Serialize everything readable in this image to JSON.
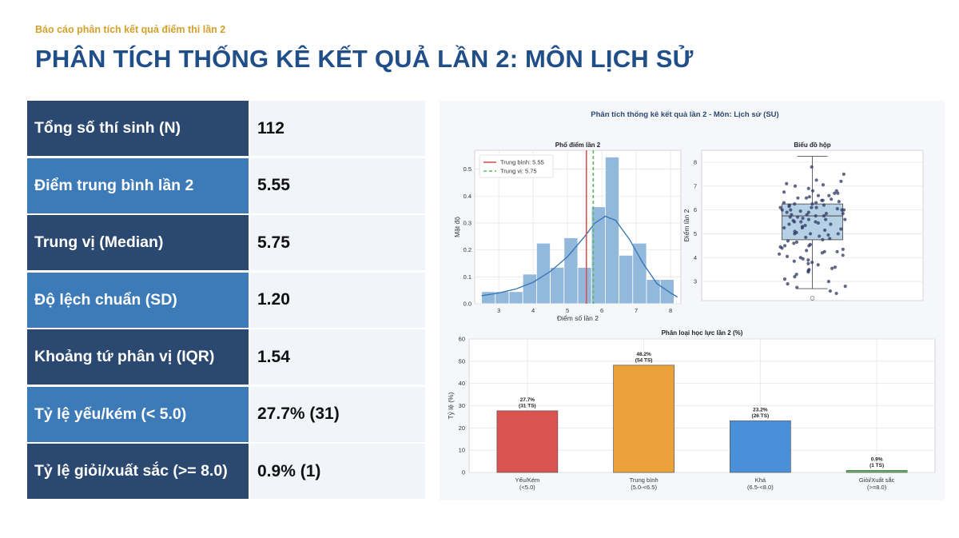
{
  "header": {
    "kicker": "Báo cáo phân tích kết quả điểm thi lần 2",
    "title": "PHÂN TÍCH THỐNG KÊ KẾT QUẢ LẦN 2: MÔN LỊCH SỬ"
  },
  "stats": [
    {
      "label": "Tổng số thí sinh (N)",
      "value": "112",
      "style": "dark"
    },
    {
      "label": "Điểm trung bình lần 2",
      "value": "5.55",
      "style": "light"
    },
    {
      "label": "Trung vị (Median)",
      "value": "5.75",
      "style": "dark"
    },
    {
      "label": "Độ lệch chuẩn (SD)",
      "value": "1.20",
      "style": "light"
    },
    {
      "label": "Khoảng tứ phân vị (IQR)",
      "value": "1.54",
      "style": "dark"
    },
    {
      "label": "Tỷ lệ yếu/kém (< 5.0)",
      "value": "27.7% (31)",
      "style": "light"
    },
    {
      "label": "Tỷ lệ giỏi/xuất sắc (>= 8.0)",
      "value": "0.9% (1)",
      "style": "dark"
    }
  ],
  "figure_title": "Phân tích thống kê kết quả lần 2 - Môn: Lịch sử (SU)",
  "chart_data": [
    {
      "type": "histogram",
      "title": "Phổ điểm lần 2",
      "xlabel": "Điểm số lần 2",
      "ylabel": "Mật độ",
      "xlim": [
        2.3,
        8.3
      ],
      "ylim": [
        0,
        0.57
      ],
      "xticks": [
        3,
        4,
        5,
        6,
        7,
        8
      ],
      "yticks": [
        0.0,
        0.1,
        0.2,
        0.3,
        0.4,
        0.5
      ],
      "bins": [
        {
          "x0": 2.5,
          "x1": 2.9,
          "density": 0.045
        },
        {
          "x0": 2.9,
          "x1": 3.3,
          "density": 0.045
        },
        {
          "x0": 3.3,
          "x1": 3.7,
          "density": 0.045
        },
        {
          "x0": 3.7,
          "x1": 4.1,
          "density": 0.11
        },
        {
          "x0": 4.1,
          "x1": 4.5,
          "density": 0.225
        },
        {
          "x0": 4.5,
          "x1": 4.9,
          "density": 0.135
        },
        {
          "x0": 4.9,
          "x1": 5.3,
          "density": 0.245
        },
        {
          "x0": 5.3,
          "x1": 5.7,
          "density": 0.135
        },
        {
          "x0": 5.7,
          "x1": 6.1,
          "density": 0.36
        },
        {
          "x0": 6.1,
          "x1": 6.5,
          "density": 0.545
        },
        {
          "x0": 6.5,
          "x1": 6.9,
          "density": 0.18
        },
        {
          "x0": 6.9,
          "x1": 7.3,
          "density": 0.225
        },
        {
          "x0": 7.3,
          "x1": 7.7,
          "density": 0.09
        },
        {
          "x0": 7.7,
          "x1": 8.1,
          "density": 0.09
        }
      ],
      "kde": [
        [
          2.5,
          0.03
        ],
        [
          3.0,
          0.04
        ],
        [
          3.5,
          0.055
        ],
        [
          4.0,
          0.08
        ],
        [
          4.5,
          0.12
        ],
        [
          5.0,
          0.175
        ],
        [
          5.5,
          0.25
        ],
        [
          5.8,
          0.3
        ],
        [
          6.1,
          0.325
        ],
        [
          6.4,
          0.31
        ],
        [
          6.8,
          0.24
        ],
        [
          7.2,
          0.15
        ],
        [
          7.6,
          0.075
        ],
        [
          8.0,
          0.04
        ],
        [
          8.2,
          0.025
        ]
      ],
      "mean": 5.55,
      "median": 5.75,
      "legend": [
        {
          "label": "Trung bình: 5.55",
          "color": "#d9534f",
          "dash": false
        },
        {
          "label": "Trung vị: 5.75",
          "color": "#5cb85c",
          "dash": true
        }
      ]
    },
    {
      "type": "box",
      "title": "Biểu đồ hộp",
      "ylabel": "Điểm lần 2",
      "ylim": [
        2.2,
        8.5
      ],
      "yticks": [
        3,
        4,
        5,
        6,
        7,
        8
      ],
      "whisker_low": 2.7,
      "q1": 4.75,
      "median": 5.75,
      "q3": 6.25,
      "whisker_high": 8.25,
      "outliers": [
        2.3
      ],
      "points": [
        7.8,
        7.25,
        7.1,
        7.0,
        6.9,
        6.8,
        6.75,
        6.7,
        6.6,
        6.5,
        6.5,
        6.45,
        6.4,
        6.3,
        6.25,
        6.25,
        6.2,
        6.2,
        6.1,
        6.1,
        6.0,
        6.0,
        6.0,
        6.0,
        5.9,
        5.9,
        5.85,
        5.8,
        5.8,
        5.75,
        5.75,
        5.7,
        5.7,
        5.6,
        5.6,
        5.5,
        5.5,
        5.5,
        5.4,
        5.4,
        5.3,
        5.25,
        5.25,
        5.2,
        5.1,
        5.0,
        5.0,
        5.0,
        4.9,
        4.85,
        4.8,
        4.75,
        4.7,
        4.6,
        4.5,
        4.5,
        4.4,
        4.3,
        4.25,
        4.2,
        4.1,
        4.0,
        3.9,
        3.8,
        3.75,
        3.6,
        3.5,
        3.4,
        3.3,
        3.2,
        3.0,
        2.9,
        2.75,
        2.6,
        2.5,
        7.5,
        7.2,
        6.8,
        6.6,
        6.4,
        6.3,
        6.1,
        5.95,
        5.65,
        5.55,
        5.35,
        5.15,
        4.95,
        4.65,
        4.35,
        4.15,
        3.95,
        3.7,
        3.45,
        3.1,
        2.8,
        6.55,
        6.05,
        5.45,
        4.55,
        4.05,
        3.55,
        6.35,
        5.05,
        4.45,
        6.15,
        5.85,
        5.6,
        7.05,
        4.25,
        3.85,
        6.7
      ]
    },
    {
      "type": "bar",
      "title": "Phân loại học lực lần 2 (%)",
      "ylabel": "Tỷ lệ (%)",
      "ylim": [
        0,
        60
      ],
      "yticks": [
        0,
        10,
        20,
        30,
        40,
        50,
        60
      ],
      "categories": [
        {
          "name": "Yếu/Kém",
          "range": "(<5.0)",
          "value": 27.7,
          "pct_label": "27.7%",
          "count_label": "(31 TS)",
          "color": "#d9534f"
        },
        {
          "name": "Trung bình",
          "range": "(5.0-<6.5)",
          "value": 48.2,
          "pct_label": "48.2%",
          "count_label": "(54 TS)",
          "color": "#eba23a"
        },
        {
          "name": "Khá",
          "range": "(6.5-<8.0)",
          "value": 23.2,
          "pct_label": "23.2%",
          "count_label": "(26 TS)",
          "color": "#4a90d9"
        },
        {
          "name": "Giỏi/Xuất sắc",
          "range": "(>=8.0)",
          "value": 0.9,
          "pct_label": "0.9%",
          "count_label": "(1 TS)",
          "color": "#5cb85c"
        }
      ]
    }
  ]
}
